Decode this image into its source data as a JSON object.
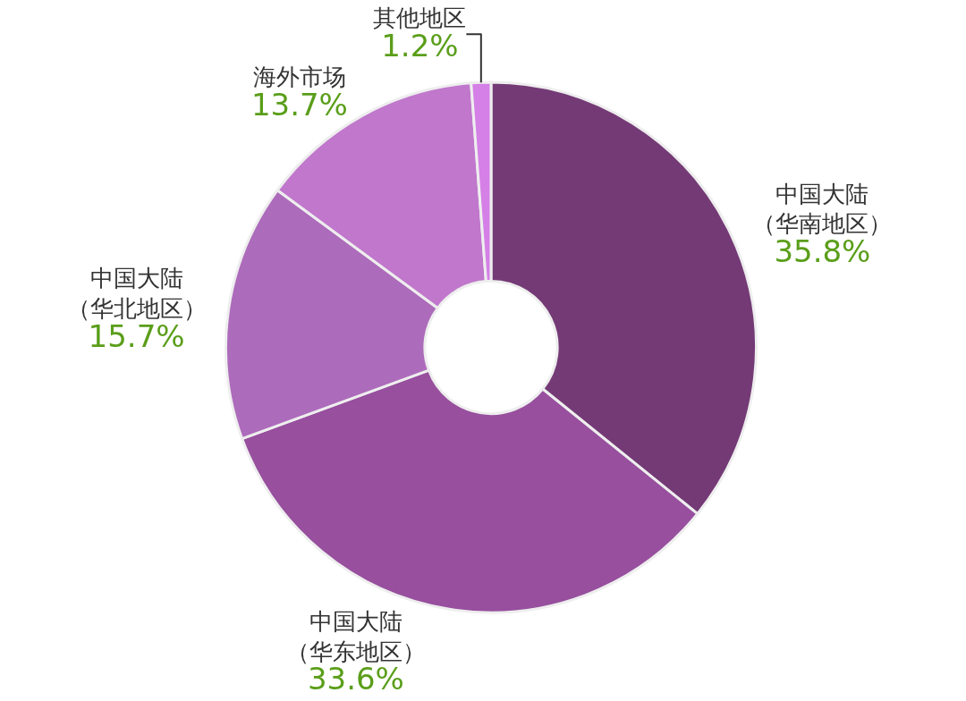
{
  "chart_data": {
    "type": "donut",
    "categories": [
      "中国大陆（华南地区）",
      "中国大陆（华东地区）",
      "中国大陆（华北地区）",
      "海外市场",
      "其他地区"
    ],
    "values": [
      35.8,
      33.6,
      15.7,
      13.7,
      1.2
    ],
    "value_labels": [
      "35.8%",
      "33.6%",
      "15.7%",
      "13.7%",
      "1.2%"
    ],
    "colors": [
      "#743a76",
      "#974f9e",
      "#ad6bbb",
      "#c077cc",
      "#d580e6"
    ]
  }
}
